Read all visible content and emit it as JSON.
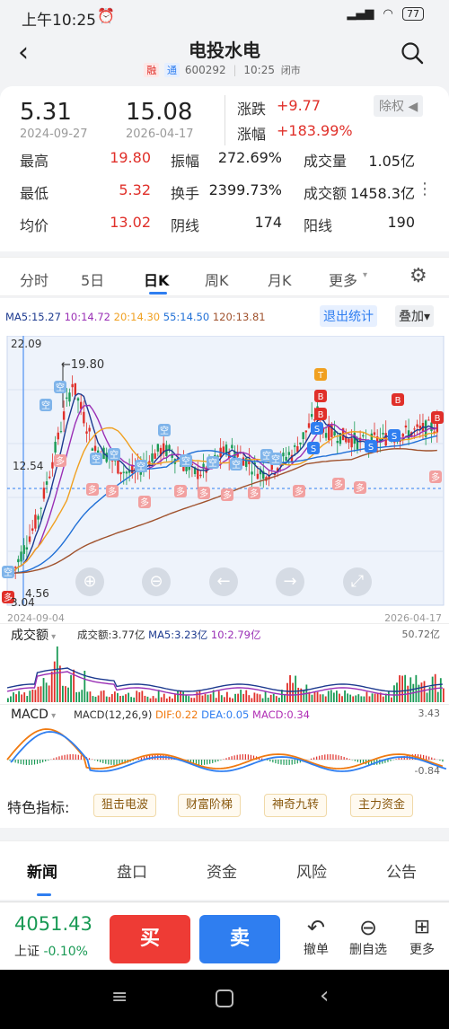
{
  "status": {
    "time": "上午10:25",
    "battery": "77"
  },
  "header": {
    "title": "电投水电",
    "tag_rong": "融",
    "tag_tong": "通",
    "code": "600292",
    "time": "10:25",
    "state": "闭市"
  },
  "quote": {
    "start_price": "5.31",
    "start_date": "2024-09-27",
    "end_price": "15.08",
    "end_date": "2026-04-17",
    "change_label": "涨跌",
    "change_value": "+9.77",
    "pct_label": "涨幅",
    "pct_value": "+183.99%",
    "adjust": "除权",
    "rows": [
      {
        "l1": "最高",
        "v1": "19.80",
        "l2": "振幅",
        "v2": "272.69%",
        "l3": "成交量",
        "v3": "1.05亿"
      },
      {
        "l1": "最低",
        "v1": "5.32",
        "l2": "换手",
        "v2": "2399.73%",
        "l3": "成交额",
        "v3": "1458.3亿"
      },
      {
        "l1": "均价",
        "v1": "13.02",
        "l2": "阴线",
        "v2": "174",
        "l3": "阳线",
        "v3": "190"
      }
    ]
  },
  "ktabs": [
    "分时",
    "5日",
    "日K",
    "周K",
    "月K",
    "更多"
  ],
  "ktab_active": "日K",
  "ma": {
    "ma5": "MA5:15.27",
    "ma10": "10:14.72",
    "ma20": "20:14.30",
    "ma55": "55:14.50",
    "ma120": "120:13.81",
    "exit_stats": "退出统计",
    "overlay": "叠加"
  },
  "colors": {
    "up": "#e0302a",
    "down": "#1a9a55",
    "ma5": "#1d3a8f",
    "ma10": "#9a2fb5",
    "ma20": "#f0a020",
    "ma55": "#1f6fd6",
    "ma120": "#a0522d",
    "accent": "#2f7ef0"
  },
  "kchart": {
    "y_top": "22.09",
    "y_mid": "12.54",
    "y_low": "4.56",
    "y_bottom": "3.04",
    "max_label": "←19.80",
    "date_start": "2024-09-04",
    "date_end": "2026-04-17",
    "signal_kong": "空",
    "signal_duo": "多",
    "signal_b": "B",
    "signal_s": "S",
    "signal_t": "T"
  },
  "volume": {
    "label": "成交额",
    "amount": "成交额:3.77亿",
    "ma5": "MA5:3.23亿",
    "ma10": "10:2.79亿",
    "max": "50.72亿"
  },
  "macd": {
    "label": "MACD",
    "params": "MACD(12,26,9)",
    "dif": "DIF:0.22",
    "dea": "DEA:0.05",
    "macd": "MACD:0.34",
    "max": "3.43",
    "min": "-0.84"
  },
  "features": {
    "label": "特色指标:",
    "chips": [
      "狙击电波",
      "财富阶梯",
      "神奇九转",
      "主力资金"
    ]
  },
  "newstabs": [
    "新闻",
    "盘口",
    "资金",
    "风险",
    "公告"
  ],
  "bottom": {
    "index_value": "4051.43",
    "index_name": "上证",
    "index_change": "-0.10%",
    "buy": "买",
    "sell": "卖",
    "actions": [
      "撤单",
      "删自选",
      "更多"
    ]
  }
}
